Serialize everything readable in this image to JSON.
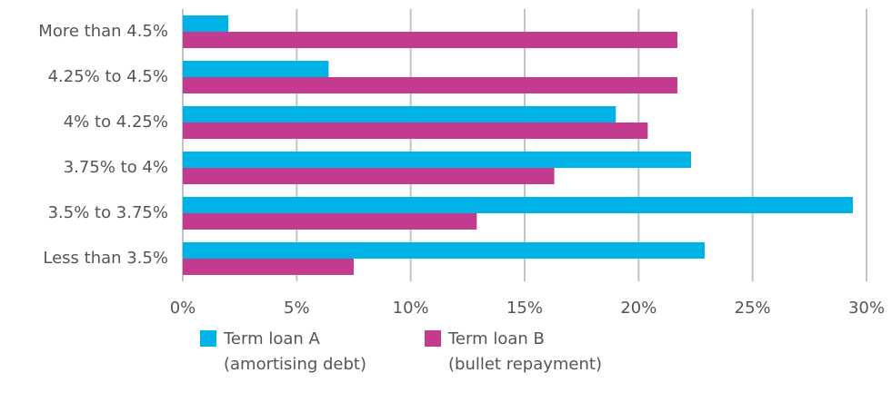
{
  "chart_data": {
    "type": "barh",
    "categories": [
      "More than 4.5%",
      "4.25% to 4.5%",
      "4% to 4.25%",
      "3.75% to 4%",
      "3.5% to 3.75%",
      "Less than 3.5%"
    ],
    "series": [
      {
        "name": "Term loan A\n(amortising debt)",
        "color": "#00b3e6",
        "values": [
          2,
          6.4,
          19,
          22.3,
          29.4,
          22.9
        ]
      },
      {
        "name": "Term loan B\n(bullet repayment)",
        "color": "#c23b8e",
        "values": [
          21.7,
          21.7,
          20.4,
          16.3,
          12.9,
          7.5
        ]
      }
    ],
    "xlim": [
      0,
      30
    ],
    "xticks": [
      {
        "value": 0,
        "label": "0%"
      },
      {
        "value": 5,
        "label": "5%"
      },
      {
        "value": 10,
        "label": "10%"
      },
      {
        "value": 15,
        "label": "15%"
      },
      {
        "value": 20,
        "label": "20%"
      },
      {
        "value": 25,
        "label": "25%"
      },
      {
        "value": 30,
        "label": "30%"
      }
    ],
    "grid": true,
    "legend": "bottom"
  }
}
